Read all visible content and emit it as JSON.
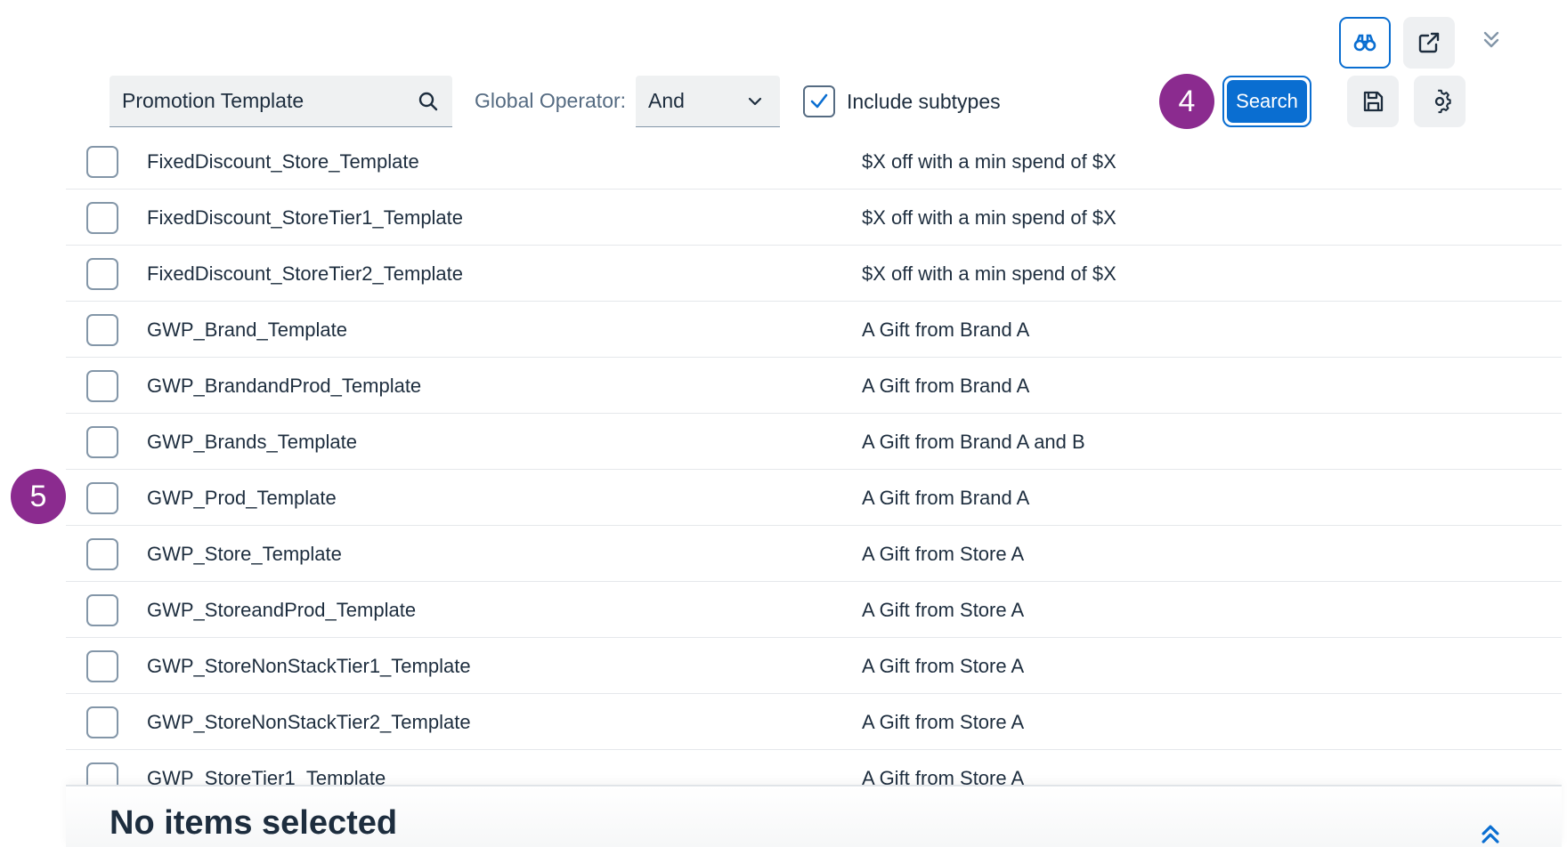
{
  "toolbar": {
    "binoculars_icon": "binoculars-icon",
    "share_icon": "share-icon",
    "collapse_icon": "double-chevron-down-icon",
    "save_icon": "save-icon",
    "settings_icon": "gear-icon"
  },
  "filter": {
    "search_value": "Promotion Template",
    "operator_label": "Global Operator:",
    "operator_value": "And",
    "include_subtypes_label": "Include subtypes",
    "include_subtypes_checked": true,
    "search_button_label": "Search"
  },
  "badges": {
    "step_search": "4",
    "step_row": "5",
    "color": "#8b2b8f"
  },
  "results": {
    "rows": [
      {
        "name": "FixedDiscount_Store_Template",
        "description": "$X off with a min spend of $X"
      },
      {
        "name": "FixedDiscount_StoreTier1_Template",
        "description": "$X off with a min spend of $X"
      },
      {
        "name": "FixedDiscount_StoreTier2_Template",
        "description": "$X off with a min spend of $X"
      },
      {
        "name": "GWP_Brand_Template",
        "description": "A Gift from Brand A"
      },
      {
        "name": "GWP_BrandandProd_Template",
        "description": "A Gift from Brand A"
      },
      {
        "name": "GWP_Brands_Template",
        "description": "A Gift from Brand A and B"
      },
      {
        "name": "GWP_Prod_Template",
        "description": "A Gift from Brand A"
      },
      {
        "name": "GWP_Store_Template",
        "description": "A Gift from Store A"
      },
      {
        "name": "GWP_StoreandProd_Template",
        "description": "A Gift from Store A"
      },
      {
        "name": "GWP_StoreNonStackTier1_Template",
        "description": "A Gift from Store A"
      },
      {
        "name": "GWP_StoreNonStackTier2_Template",
        "description": "A Gift from Store A"
      },
      {
        "name": "GWP_StoreTier1_Template",
        "description": "A Gift from Store A"
      }
    ]
  },
  "footer": {
    "selection_status": "No items selected",
    "expand_icon": "double-chevron-up-icon"
  },
  "colors": {
    "accent": "#0a6ed1",
    "highlight": "#8b2b8f"
  }
}
